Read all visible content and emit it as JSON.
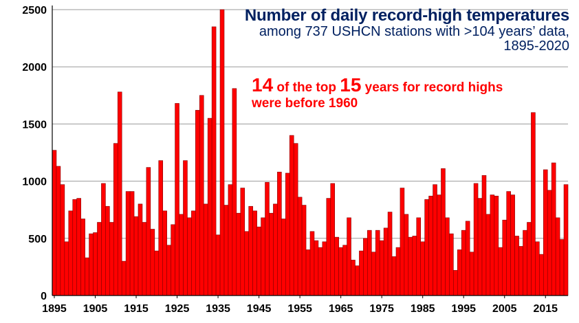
{
  "chart_data": {
    "type": "bar",
    "title": "Number of daily record-high temperatures",
    "subtitle_line1": "among 737 USHCN stations with >104 years’ data,",
    "subtitle_line2": "1895-2020",
    "annotation": {
      "num1": "14",
      "text1": " of the top ",
      "num2": "15",
      "text2": " years for record highs",
      "line2": "were before 1960"
    },
    "x_start": 1895,
    "x_end": 2020,
    "xticks": [
      1895,
      1905,
      1915,
      1925,
      1935,
      1945,
      1955,
      1965,
      1975,
      1985,
      1995,
      2005,
      2015
    ],
    "ylim": [
      0,
      2500
    ],
    "yticks": [
      0,
      500,
      1000,
      1500,
      2000,
      2500
    ],
    "grid": true,
    "bar_color": "#ff0000",
    "bar_edge_color": "#800000",
    "values": [
      1270,
      1130,
      970,
      470,
      740,
      840,
      850,
      670,
      330,
      540,
      550,
      640,
      980,
      780,
      640,
      1330,
      1780,
      300,
      910,
      910,
      690,
      800,
      640,
      1120,
      580,
      390,
      1180,
      740,
      440,
      620,
      1680,
      710,
      1180,
      680,
      740,
      1620,
      1750,
      800,
      1550,
      2350,
      530,
      2500,
      790,
      970,
      1810,
      720,
      940,
      560,
      780,
      740,
      600,
      680,
      990,
      720,
      800,
      1080,
      670,
      1070,
      1400,
      1330,
      860,
      790,
      400,
      560,
      480,
      420,
      470,
      850,
      980,
      510,
      420,
      440,
      680,
      310,
      260,
      390,
      500,
      570,
      380,
      570,
      480,
      590,
      730,
      340,
      420,
      940,
      710,
      510,
      520,
      680,
      470,
      840,
      870,
      970,
      880,
      1110,
      680,
      540,
      220,
      400,
      570,
      650,
      380,
      980,
      850,
      1050,
      710,
      880,
      870,
      420,
      660,
      910,
      880,
      520,
      430,
      570,
      640,
      1600,
      470,
      360,
      1100,
      920,
      1160,
      680,
      490,
      970
    ]
  },
  "colors": {
    "title": "#002060",
    "annotation": "#ff0000",
    "grid": "#9a9a9a"
  }
}
